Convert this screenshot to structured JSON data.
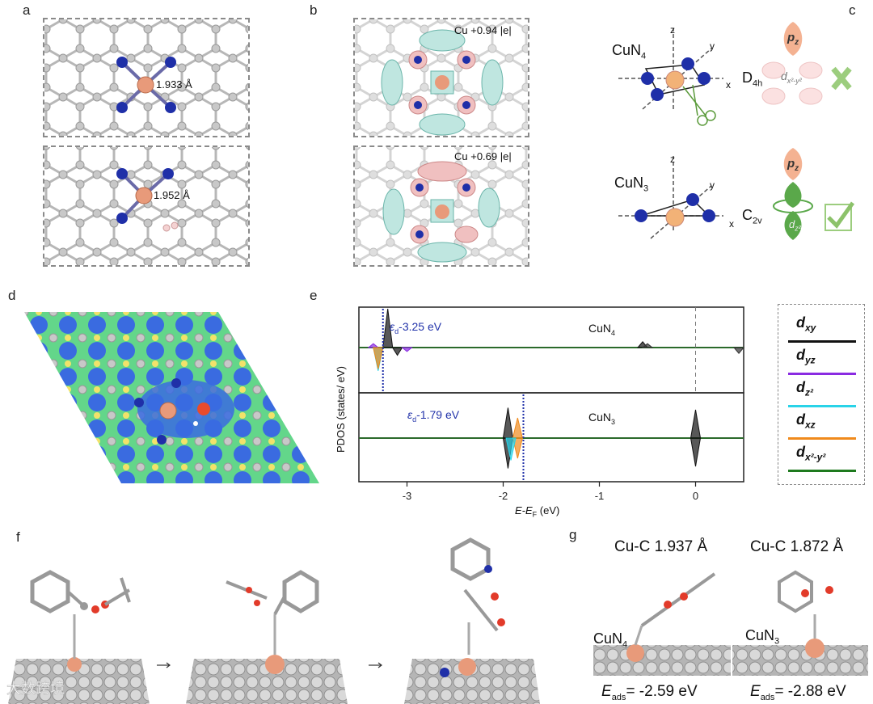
{
  "panels": {
    "a": {
      "label": "a",
      "bond_top": "1.933 Å",
      "bond_bottom": "1.952 Å"
    },
    "b": {
      "label": "b",
      "charge_top": "Cu +0.94 |e|",
      "charge_bottom": "Cu +0.69 |e|"
    },
    "c": {
      "label": "c",
      "top": {
        "site": "CuN",
        "site_sub": "4",
        "sym": "D",
        "sym_sub": "4h",
        "orb1": "p",
        "orb1_sub": "z",
        "orb2": "d",
        "orb2_sub": "x²-y²"
      },
      "bottom": {
        "site": "CuN",
        "site_sub": "3",
        "sym": "C",
        "sym_sub": "2v",
        "orb1": "p",
        "orb1_sub": "z",
        "orb2": "d",
        "orb2_sub": "z²"
      },
      "axis_x": "x",
      "axis_y": "y",
      "axis_z": "z"
    },
    "d": {
      "label": "d"
    },
    "e": {
      "label": "e",
      "top_annot": "-3.25 eV",
      "top_annot_sym": "ε",
      "top_annot_sub": "d",
      "top_site": "CuN",
      "top_site_sub": "4",
      "bottom_annot": "-1.79 eV",
      "bottom_annot_sym": "ε",
      "bottom_annot_sub": "d",
      "bottom_site": "CuN",
      "bottom_site_sub": "3",
      "ylabel": "PDOS (states/ eV)",
      "xlabel_main": "E-E",
      "xlabel_sub": "F",
      "xlabel_unit": " (eV)"
    },
    "f": {
      "label": "f"
    },
    "g": {
      "label": "g",
      "left_bond": "Cu-C 1.937 Å",
      "right_bond": "Cu-C 1.872 Å",
      "left_site": "CuN",
      "left_site_sub": "4",
      "right_site": "CuN",
      "right_site_sub": "3",
      "left_eads_sym": "E",
      "left_eads_sub": "ads",
      "left_eads_val": "= -2.59 eV",
      "right_eads_sym": "E",
      "right_eads_sub": "ads",
      "right_eads_val": "= -2.88 eV"
    }
  },
  "legend": {
    "items": [
      {
        "main": "d",
        "sub": "xy",
        "color": "#111111"
      },
      {
        "main": "d",
        "sub": "yz",
        "color": "#8a2be2"
      },
      {
        "main": "d",
        "sub": "z²",
        "color": "#29d3e8"
      },
      {
        "main": "d",
        "sub": "xz",
        "color": "#f08a1c"
      },
      {
        "main": "d",
        "sub": "x²-y²",
        "color": "#1e7a1e"
      }
    ]
  },
  "watermark": "大数跨境",
  "chart_data": {
    "type": "line",
    "xlabel": "E-EF (eV)",
    "ylabel": "PDOS (states/ eV)",
    "xlim": [
      -3.5,
      0.5
    ],
    "x_ticks": [
      -3,
      -2,
      -1,
      0
    ],
    "series": [
      {
        "name": "dxy",
        "panel": "CuN4",
        "peaks": [
          [
            -3.2,
            1.0
          ],
          [
            -3.1,
            -0.2
          ],
          [
            -0.55,
            0.15
          ]
        ]
      },
      {
        "name": "dyz",
        "panel": "CuN4",
        "peaks": [
          [
            -3.35,
            0.1
          ],
          [
            -3.0,
            -0.1
          ]
        ]
      },
      {
        "name": "dz2",
        "panel": "CuN4",
        "peaks": [
          [
            -3.3,
            -0.6
          ]
        ]
      },
      {
        "name": "dxz",
        "panel": "CuN4",
        "peaks": [
          [
            -3.3,
            -0.55
          ]
        ]
      },
      {
        "name": "dx2-y2",
        "panel": "CuN4",
        "peaks": [
          [
            -0.5,
            0.1
          ],
          [
            0.45,
            -0.15
          ]
        ]
      },
      {
        "name": "dxy",
        "panel": "CuN3",
        "peaks": [
          [
            -1.95,
            0.75
          ],
          [
            -1.95,
            -0.75
          ],
          [
            0.0,
            0.7
          ],
          [
            0.0,
            -0.7
          ]
        ]
      },
      {
        "name": "dxz",
        "panel": "CuN3",
        "peaks": [
          [
            -1.85,
            0.5
          ],
          [
            -1.85,
            -0.5
          ]
        ]
      },
      {
        "name": "dz2",
        "panel": "CuN3",
        "peaks": [
          [
            -1.92,
            -0.55
          ]
        ]
      }
    ],
    "annotations": [
      {
        "panel": "CuN4",
        "text": "εd= -3.25 eV",
        "x": -3.25
      },
      {
        "panel": "CuN3",
        "text": "εd= -1.79 eV",
        "x": -1.79
      }
    ]
  }
}
